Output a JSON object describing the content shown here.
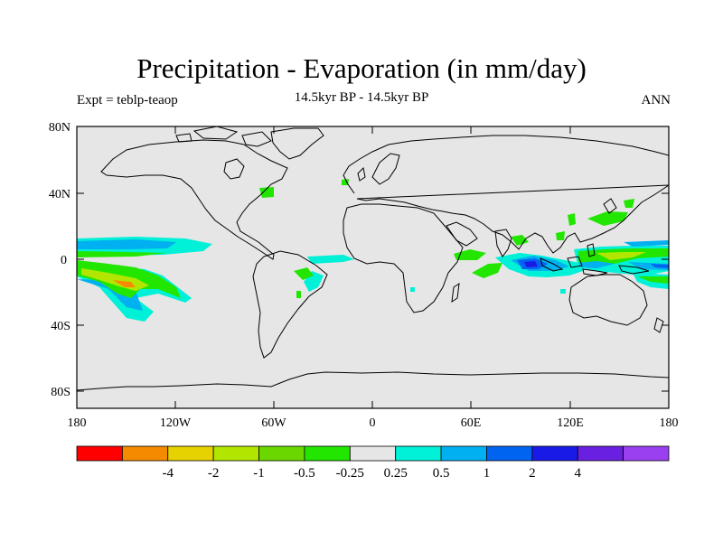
{
  "title": "Precipitation - Evaporation (in mm/day)",
  "subtitle": "14.5kyr BP - 14.5kyr BP",
  "experiment_label": "Expt = teblp-teaop",
  "season_label": "ANN",
  "lat_ticks": [
    "80N",
    "40N",
    "0",
    "40S",
    "80S"
  ],
  "lon_ticks": [
    "180",
    "120W",
    "60W",
    "0",
    "60E",
    "120E",
    "180"
  ],
  "colorbar": {
    "colors": [
      "#ff0000",
      "#f58a00",
      "#e6d200",
      "#b2e600",
      "#6ad800",
      "#22e600",
      "#e6e6e6",
      "#00f0d8",
      "#00b0f0",
      "#0064f0",
      "#1a1ae6",
      "#6a20e0",
      "#9a40f0"
    ],
    "labels": [
      "-4",
      "-2",
      "-1",
      "-0.5",
      "-0.25",
      "0.25",
      "0.5",
      "1",
      "2",
      "4"
    ]
  },
  "colors": {
    "ocean_land_neutral": "#e6e6e6",
    "coast": "#000000"
  }
}
